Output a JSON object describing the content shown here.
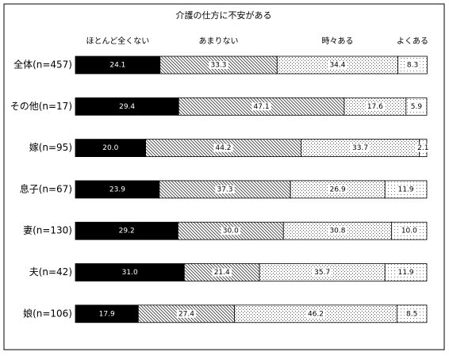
{
  "chart_data": {
    "type": "stacked-bar-100",
    "title": "介護の仕方に不安がある",
    "categories": [
      "全体(n=457)",
      "その他(n=17)",
      "嫁(n=95)",
      "息子(n=67)",
      "妻(n=130)",
      "夫(n=42)",
      "娘(n=106)"
    ],
    "xlim": [
      0,
      100
    ],
    "series": [
      {
        "name": "ほとんど全くない",
        "color": "#000000",
        "values": [
          24.1,
          29.4,
          20.0,
          23.9,
          29.2,
          31.0,
          17.9
        ],
        "value_labels": [
          "24.1",
          "29.4",
          "20.0",
          "23.9",
          "29.2",
          "31.0",
          "17.9"
        ]
      },
      {
        "name": "あまりない",
        "color": "#333333",
        "values": [
          33.3,
          47.1,
          44.2,
          37.3,
          30.0,
          21.4,
          27.4
        ],
        "value_labels": [
          "33.3",
          "47.1",
          "44.2",
          "37.3",
          "30.0",
          "21.4",
          "27.4"
        ]
      },
      {
        "name": "時々ある",
        "color": "#555555",
        "values": [
          34.4,
          17.6,
          33.7,
          26.9,
          30.8,
          35.7,
          46.2
        ],
        "value_labels": [
          "34.4",
          "17.6",
          "33.7",
          "26.9",
          "30.8",
          "35.7",
          "46.2"
        ]
      },
      {
        "name": "よくある",
        "color": "#777777",
        "values": [
          8.3,
          5.9,
          2.1,
          11.9,
          10.0,
          11.9,
          8.5
        ],
        "value_labels": [
          "8.3",
          "5.9",
          "2.1",
          "11.9",
          "10.0",
          "11.9",
          "8.5"
        ]
      }
    ]
  }
}
